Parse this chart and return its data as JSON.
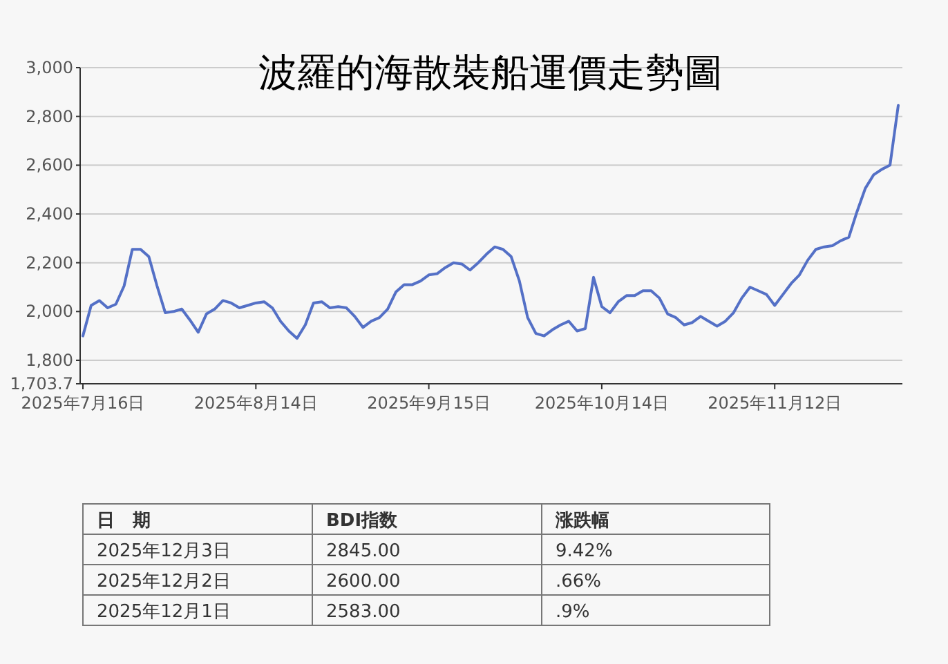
{
  "chart_data": {
    "type": "line",
    "title": "波羅的海散裝船運價走勢圖",
    "categories": [
      "2025年7月16日",
      null,
      null,
      null,
      null,
      null,
      null,
      null,
      null,
      null,
      null,
      null,
      null,
      null,
      null,
      null,
      null,
      null,
      null,
      null,
      null,
      "2025年8月14日",
      null,
      null,
      null,
      null,
      null,
      null,
      null,
      null,
      null,
      null,
      null,
      null,
      null,
      null,
      null,
      null,
      null,
      null,
      null,
      null,
      "2025年9月15日",
      null,
      null,
      null,
      null,
      null,
      null,
      null,
      null,
      null,
      null,
      null,
      null,
      null,
      null,
      null,
      null,
      null,
      null,
      null,
      null,
      "2025年10月14日",
      null,
      null,
      null,
      null,
      null,
      null,
      null,
      null,
      null,
      null,
      null,
      null,
      null,
      null,
      null,
      null,
      null,
      null,
      null,
      null,
      "2025年11月12日",
      null,
      null,
      null,
      null,
      null,
      null,
      null,
      null,
      null,
      null,
      null,
      null,
      null,
      null,
      null
    ],
    "series": [
      {
        "color": "#5470c6",
        "values": [
          1900,
          2025,
          2045,
          2015,
          2030,
          2105,
          2255,
          2255,
          2225,
          2105,
          1995,
          2000,
          2010,
          1965,
          1915,
          1990,
          2010,
          2045,
          2035,
          2015,
          2025,
          2035,
          2040,
          2015,
          1960,
          1920,
          1890,
          1945,
          2035,
          2040,
          2015,
          2020,
          2015,
          1980,
          1935,
          1960,
          1975,
          2010,
          2080,
          2110,
          2110,
          2125,
          2150,
          2155,
          2180,
          2200,
          2195,
          2170,
          2200,
          2235,
          2265,
          2255,
          2225,
          2125,
          1975,
          1910,
          1900,
          1925,
          1945,
          1960,
          1920,
          1930,
          2140,
          2020,
          1995,
          2040,
          2065,
          2065,
          2085,
          2085,
          2055,
          1990,
          1975,
          1945,
          1955,
          1980,
          1960,
          1940,
          1960,
          1995,
          2055,
          2100,
          2085,
          2070,
          2025,
          2070,
          2115,
          2150,
          2210,
          2255,
          2265,
          2270,
          2290,
          2305,
          2410,
          2505,
          2560,
          2583,
          2600,
          2845
        ]
      }
    ],
    "ylim": [
      1703.7,
      3000
    ],
    "yticks": [
      {
        "value": 1703.7,
        "label": "1,703.7"
      },
      {
        "value": 1800,
        "label": "1,800"
      },
      {
        "value": 2000,
        "label": "2,000"
      },
      {
        "value": 2200,
        "label": "2,200"
      },
      {
        "value": 2400,
        "label": "2,400"
      },
      {
        "value": 2600,
        "label": "2,600"
      },
      {
        "value": 2800,
        "label": "2,800"
      },
      {
        "value": 3000,
        "label": "3,000"
      }
    ],
    "grid": "y",
    "marker": "none",
    "line_style": "solid",
    "annotations": [
      "日　期",
      "BDI指数",
      "涨跌幅",
      "2025年12月3日",
      "2845.00",
      "9.42%",
      "2025年12月2日",
      "2600.00",
      ".66%",
      "2025年12月1日",
      "2583.00",
      ".9%"
    ]
  }
}
